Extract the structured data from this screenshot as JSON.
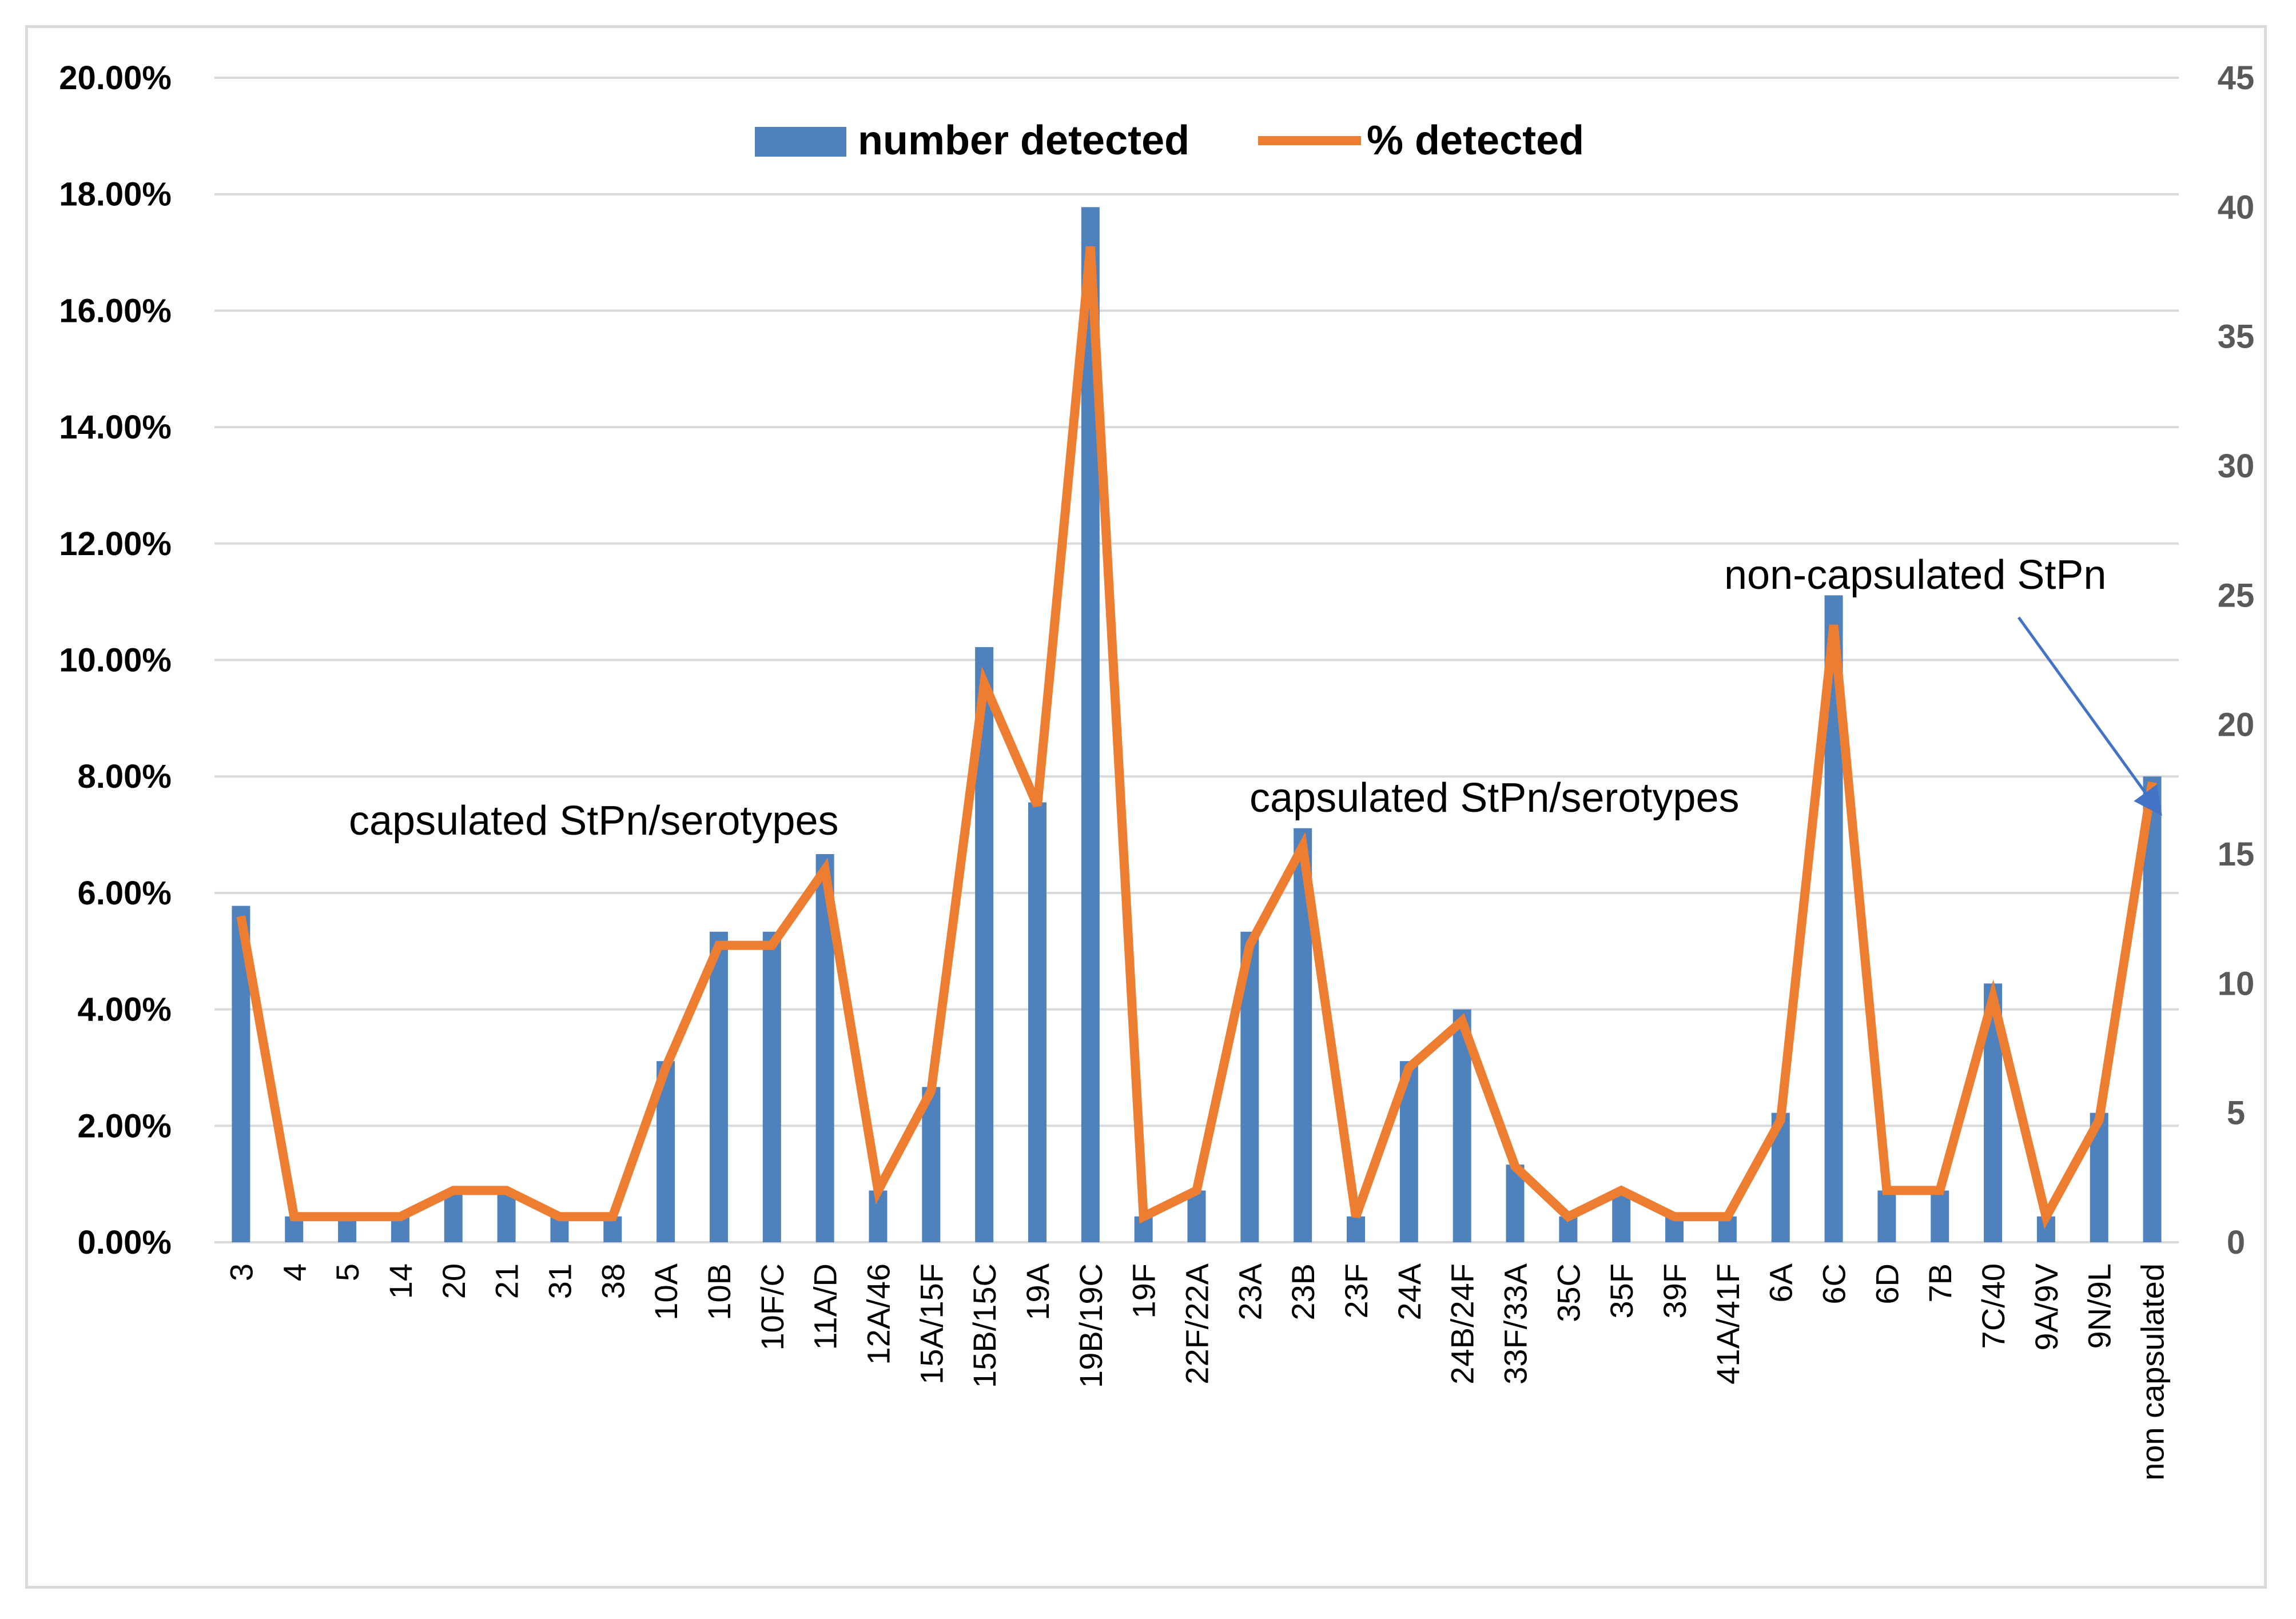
{
  "chart_data": {
    "type": "bar+line",
    "categories": [
      "3",
      "4",
      "5",
      "14",
      "20",
      "21",
      "31",
      "38",
      "10A",
      "10B",
      "10F/C",
      "11A/D",
      "12A/46",
      "15A/15F",
      "15B/15C",
      "19A",
      "19B/19C",
      "19F",
      "22F/22A",
      "23A",
      "23B",
      "23F",
      "24A",
      "24B/24F",
      "33F/33A",
      "35C",
      "35F",
      "39F",
      "41A/41F",
      "6A",
      "6C",
      "6D",
      "7B",
      "7C/40",
      "9A/9V",
      "9N/9L",
      "non capsulated"
    ],
    "series": [
      {
        "name": "number detected",
        "axis": "right",
        "color": "#4f81bd",
        "values": [
          13,
          1,
          1,
          1,
          2,
          2,
          1,
          1,
          7,
          12,
          12,
          15,
          2,
          6,
          23,
          17,
          40,
          1,
          2,
          12,
          16,
          1,
          7,
          9,
          3,
          1,
          2,
          1,
          1,
          5,
          25,
          2,
          2,
          10,
          1,
          5,
          18
        ]
      },
      {
        "name": "% detected",
        "axis": "left",
        "color": "#ed7d31",
        "values": [
          5.6,
          0.44,
          0.44,
          0.44,
          0.89,
          0.89,
          0.44,
          0.44,
          3.0,
          5.1,
          5.1,
          6.4,
          0.89,
          2.6,
          9.6,
          7.5,
          17.1,
          0.44,
          0.89,
          5.1,
          6.8,
          0.44,
          3.0,
          3.8,
          1.3,
          0.44,
          0.89,
          0.44,
          0.44,
          2.1,
          10.6,
          0.89,
          0.89,
          4.2,
          0.44,
          2.1,
          7.9
        ]
      }
    ],
    "y_left": {
      "min": 0,
      "max": 20,
      "step": 2,
      "tick_labels": [
        "0.00%",
        "2.00%",
        "4.00%",
        "6.00%",
        "8.00%",
        "10.00%",
        "12.00%",
        "14.00%",
        "16.00%",
        "18.00%",
        "20.00%"
      ]
    },
    "y_right": {
      "min": 0,
      "max": 45,
      "step": 5,
      "tick_labels": [
        "0",
        "5",
        "10",
        "15",
        "20",
        "25",
        "30",
        "35",
        "40",
        "45"
      ]
    },
    "legend": {
      "position": "top-center",
      "items": [
        "number detected",
        "% detected"
      ]
    },
    "annotations": [
      "capsulated StPn/serotypes",
      "capsulated StPn/serotypes",
      "non-capsulated StPn"
    ],
    "gridlines": true
  }
}
